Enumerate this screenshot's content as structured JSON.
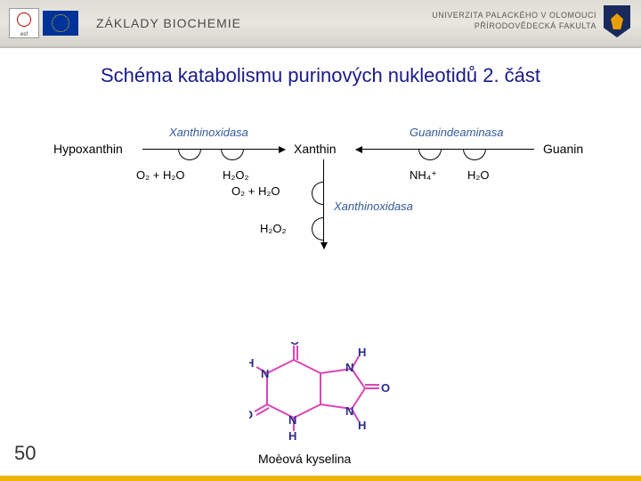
{
  "header": {
    "esf_label": "esf",
    "course_title": "ZÁKLADY BIOCHEMIE",
    "university_line1": "UNIVERZITA PALACKÉHO V OLOMOUCI",
    "university_line2": "PŘÍRODOVĚDECKÁ FAKULTA"
  },
  "slide": {
    "title": "Schéma katabolismu purinových nukleotidů 2. část",
    "page_number": "50"
  },
  "nodes": {
    "hypoxanthin": "Hypoxanthin",
    "xanthin": "Xanthin",
    "guanin": "Guanin",
    "enzyme_xo1": "Xanthinoxidasa",
    "enzyme_gd": "Guanindeaminasa",
    "enzyme_xo2": "Xanthinoxidasa",
    "o2h2o_1": "O₂ + H₂O",
    "h2o2_1": "H₂O₂",
    "nh4": "NH₄⁺",
    "h2o_right": "H₂O",
    "o2h2o_2": "O₂ + H₂O",
    "h2o2_2": "H₂O₂",
    "product": "Moèová kyselina"
  },
  "molecule": {
    "atom_O_top": "O",
    "atom_H_top": "H",
    "atom_H_left": "H",
    "atom_N1": "N",
    "atom_N2": "N",
    "atom_O_left": "O",
    "atom_N3": "N",
    "atom_N4": "N",
    "atom_O_right": "O",
    "atom_H_b1": "H",
    "atom_H_b2": "H",
    "bond_color": "#d946b4",
    "atom_color": "#2a2a8a"
  },
  "style": {
    "title_color": "#1a1a8a",
    "enzyme_color": "#335a9a",
    "accent_color": "#f0b400",
    "header_bg": "#e0dfd7",
    "title_fontsize": 22,
    "node_fontsize": 14
  }
}
